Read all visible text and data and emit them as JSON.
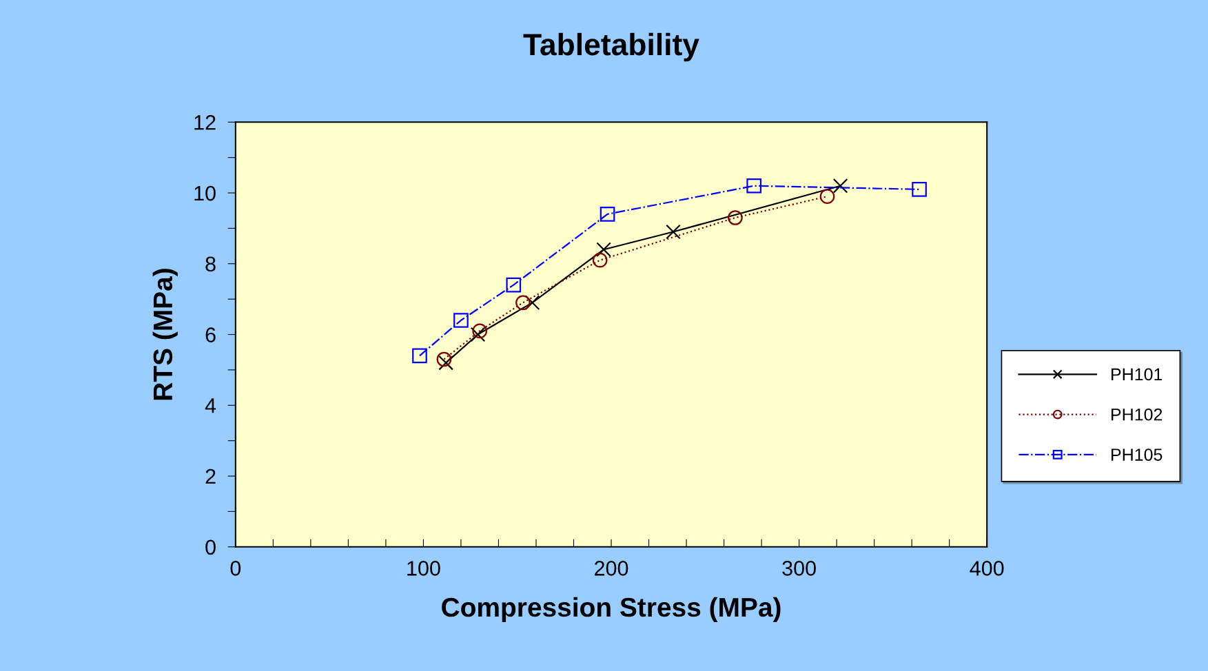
{
  "chart_data": {
    "type": "line",
    "title": "Tabletability",
    "xlabel": "Compression Stress (MPa)",
    "ylabel": "RTS (MPa)",
    "xlim": [
      0,
      400
    ],
    "ylim": [
      0,
      12
    ],
    "xticks": [
      0,
      {
        "value": 20,
        "label": null
      },
      {
        "value": 40,
        "label": null
      },
      {
        "value": 60,
        "label": null
      },
      {
        "value": 80,
        "label": null
      },
      100,
      {
        "value": 120,
        "label": null
      },
      {
        "value": 140,
        "label": null
      },
      {
        "value": 160,
        "label": null
      },
      {
        "value": 180,
        "label": null
      },
      200,
      {
        "value": 220,
        "label": null
      },
      {
        "value": 240,
        "label": null
      },
      {
        "value": 260,
        "label": null
      },
      {
        "value": 280,
        "label": null
      },
      300,
      {
        "value": 320,
        "label": null
      },
      {
        "value": 340,
        "label": null
      },
      {
        "value": 360,
        "label": null
      },
      {
        "value": 380,
        "label": null
      },
      400
    ],
    "yticks": [
      0,
      {
        "value": 1,
        "label": null
      },
      2,
      {
        "value": 3,
        "label": null
      },
      4,
      {
        "value": 5,
        "label": null
      },
      6,
      {
        "value": 7,
        "label": null
      },
      8,
      {
        "value": 9,
        "label": null
      },
      10,
      {
        "value": 11,
        "label": null
      },
      12
    ],
    "grid": false,
    "legend": "right",
    "series": [
      {
        "name": "PH101",
        "color": "#000000",
        "marker": "cross",
        "line_style": "solid",
        "x": [
          112,
          129,
          158,
          196,
          233,
          322
        ],
        "values": [
          5.2,
          6.0,
          6.9,
          8.4,
          8.9,
          10.2
        ]
      },
      {
        "name": "PH102",
        "color": "#800000",
        "marker": "circle",
        "line_style": "dotted",
        "x": [
          111,
          130,
          153,
          194,
          266,
          315
        ],
        "values": [
          5.3,
          6.1,
          6.9,
          8.1,
          9.3,
          9.9
        ]
      },
      {
        "name": "PH105",
        "color": "#0000ff",
        "marker": "square",
        "line_style": "dashdot",
        "x": [
          98,
          120,
          148,
          198,
          276,
          364
        ],
        "values": [
          5.4,
          6.4,
          7.4,
          9.4,
          10.2,
          10.1
        ]
      }
    ]
  }
}
